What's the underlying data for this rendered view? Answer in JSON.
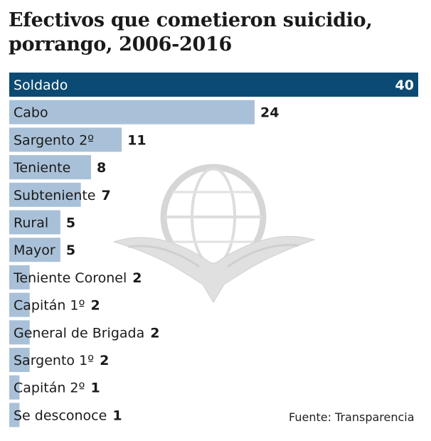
{
  "chart_data": {
    "type": "bar",
    "orientation": "horizontal",
    "title_lines": [
      "Efectivos que cometieron suicidio,",
      "porrango, 2006-2016"
    ],
    "categories": [
      "Soldado",
      "Cabo",
      "Sargento 2º",
      "Teniente",
      "Subteniente",
      "Rural",
      "Mayor",
      "Teniente Coronel",
      "Capitán 1º",
      "General de Brigada",
      "Sargento 1º",
      "Capitán 2º",
      "Se desconoce"
    ],
    "values": [
      40,
      24,
      11,
      8,
      7,
      5,
      5,
      2,
      2,
      2,
      2,
      1,
      1
    ],
    "xlim": [
      0,
      40
    ],
    "grid": false,
    "legend": "none",
    "source": "Fuente: Transparencia"
  },
  "colors": {
    "highlight_bar": "#0b4a72",
    "bar": "#a9c1d8",
    "label": "#1a1a1a",
    "highlight_label": "#ffffff"
  },
  "watermark": "eagle-globe-emblem"
}
